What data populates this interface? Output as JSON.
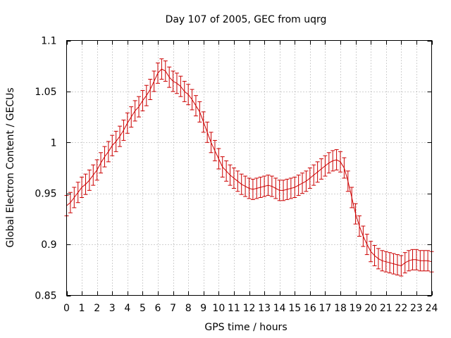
{
  "chart_data": {
    "type": "line",
    "title": "Day 107 of 2005, GEC from uqrg",
    "xlabel": "GPS time / hours",
    "ylabel": "Global Electron Content / GECUs",
    "xlim": [
      0,
      24
    ],
    "ylim": [
      0.85,
      1.1
    ],
    "x_ticks": [
      "0",
      "1",
      "2",
      "3",
      "4",
      "5",
      "6",
      "7",
      "8",
      "9",
      "10",
      "11",
      "12",
      "13",
      "14",
      "15",
      "16",
      "17",
      "18",
      "19",
      "20",
      "21",
      "22",
      "23",
      "24"
    ],
    "y_ticks": [
      "0.85",
      "0.9",
      "0.95",
      "1",
      "1.05",
      "1.1"
    ],
    "grid": true,
    "series_color": "#cc0000",
    "error": 0.01,
    "series": [
      {
        "x": [
          0,
          0.25,
          0.5,
          0.75,
          1,
          1.25,
          1.5,
          1.75,
          2,
          2.25,
          2.5,
          2.75,
          3,
          3.25,
          3.5,
          3.75,
          4,
          4.25,
          4.5,
          4.75,
          5,
          5.25,
          5.5,
          5.75,
          6,
          6.25,
          6.5,
          6.75,
          7,
          7.25,
          7.5,
          7.75,
          8,
          8.25,
          8.5,
          8.75,
          9,
          9.25,
          9.5,
          9.75,
          10,
          10.25,
          10.5,
          10.75,
          11,
          11.25,
          11.5,
          11.75,
          12,
          12.25,
          12.5,
          12.75,
          13,
          13.25,
          13.5,
          13.75,
          14,
          14.25,
          14.5,
          14.75,
          15,
          15.25,
          15.5,
          15.75,
          16,
          16.25,
          16.5,
          16.75,
          17,
          17.25,
          17.5,
          17.75,
          18,
          18.25,
          18.5,
          18.75,
          19,
          19.25,
          19.5,
          19.75,
          20,
          20.25,
          20.5,
          20.75,
          21,
          21.25,
          21.5,
          21.75,
          22,
          22.25,
          22.5,
          22.75,
          23,
          23.25,
          23.5,
          23.75,
          24
        ],
        "values": [
          0.938,
          0.941,
          0.946,
          0.951,
          0.956,
          0.959,
          0.963,
          0.968,
          0.973,
          0.98,
          0.986,
          0.991,
          0.997,
          1.001,
          1.006,
          1.012,
          1.019,
          1.025,
          1.031,
          1.035,
          1.041,
          1.046,
          1.052,
          1.06,
          1.068,
          1.072,
          1.07,
          1.064,
          1.06,
          1.058,
          1.055,
          1.05,
          1.047,
          1.042,
          1.036,
          1.03,
          1.02,
          1.01,
          1.0,
          0.992,
          0.984,
          0.976,
          0.972,
          0.968,
          0.965,
          0.962,
          0.959,
          0.957,
          0.955,
          0.954,
          0.955,
          0.956,
          0.957,
          0.958,
          0.957,
          0.955,
          0.953,
          0.953,
          0.954,
          0.955,
          0.956,
          0.958,
          0.96,
          0.962,
          0.965,
          0.968,
          0.971,
          0.974,
          0.977,
          0.98,
          0.982,
          0.983,
          0.981,
          0.975,
          0.962,
          0.946,
          0.93,
          0.918,
          0.908,
          0.9,
          0.893,
          0.889,
          0.886,
          0.884,
          0.883,
          0.882,
          0.881,
          0.88,
          0.879,
          0.882,
          0.884,
          0.885,
          0.885,
          0.884,
          0.884,
          0.884,
          0.883
        ]
      }
    ]
  }
}
